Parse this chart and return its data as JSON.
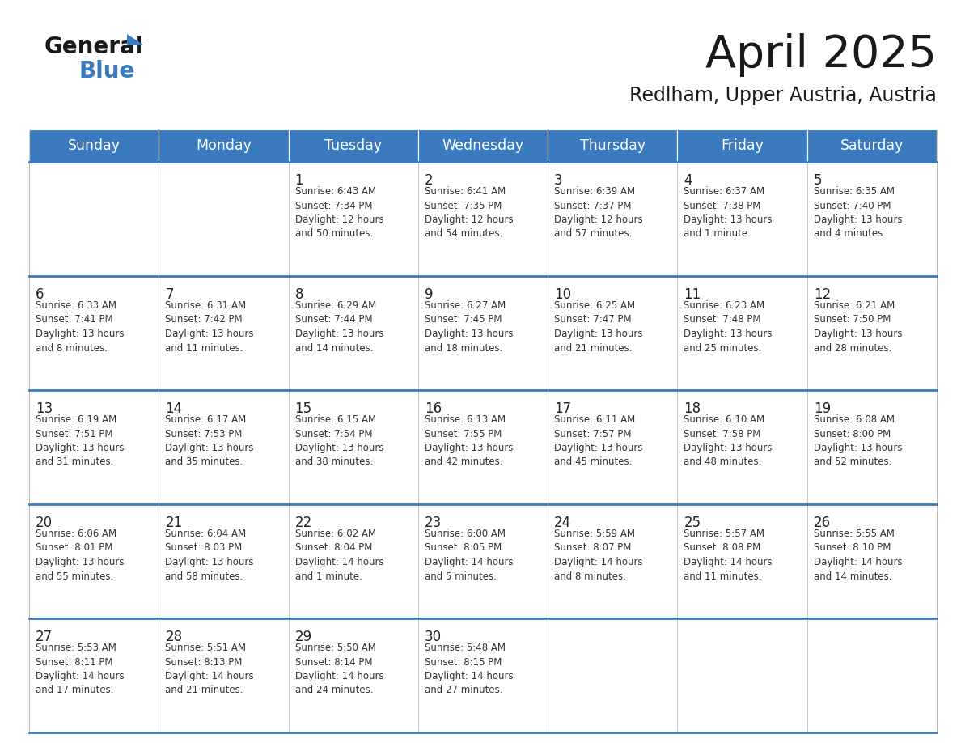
{
  "title": "April 2025",
  "subtitle": "Redlham, Upper Austria, Austria",
  "header_color": "#3a7bbf",
  "header_text_color": "#ffffff",
  "border_color": "#3a7bbf",
  "cell_border_color": "#aaaaaa",
  "cell_bg": "#ffffff",
  "text_color": "#333333",
  "day_headers": [
    "Sunday",
    "Monday",
    "Tuesday",
    "Wednesday",
    "Thursday",
    "Friday",
    "Saturday"
  ],
  "weeks": [
    [
      {
        "day": "",
        "info": ""
      },
      {
        "day": "",
        "info": ""
      },
      {
        "day": "1",
        "info": "Sunrise: 6:43 AM\nSunset: 7:34 PM\nDaylight: 12 hours\nand 50 minutes."
      },
      {
        "day": "2",
        "info": "Sunrise: 6:41 AM\nSunset: 7:35 PM\nDaylight: 12 hours\nand 54 minutes."
      },
      {
        "day": "3",
        "info": "Sunrise: 6:39 AM\nSunset: 7:37 PM\nDaylight: 12 hours\nand 57 minutes."
      },
      {
        "day": "4",
        "info": "Sunrise: 6:37 AM\nSunset: 7:38 PM\nDaylight: 13 hours\nand 1 minute."
      },
      {
        "day": "5",
        "info": "Sunrise: 6:35 AM\nSunset: 7:40 PM\nDaylight: 13 hours\nand 4 minutes."
      }
    ],
    [
      {
        "day": "6",
        "info": "Sunrise: 6:33 AM\nSunset: 7:41 PM\nDaylight: 13 hours\nand 8 minutes."
      },
      {
        "day": "7",
        "info": "Sunrise: 6:31 AM\nSunset: 7:42 PM\nDaylight: 13 hours\nand 11 minutes."
      },
      {
        "day": "8",
        "info": "Sunrise: 6:29 AM\nSunset: 7:44 PM\nDaylight: 13 hours\nand 14 minutes."
      },
      {
        "day": "9",
        "info": "Sunrise: 6:27 AM\nSunset: 7:45 PM\nDaylight: 13 hours\nand 18 minutes."
      },
      {
        "day": "10",
        "info": "Sunrise: 6:25 AM\nSunset: 7:47 PM\nDaylight: 13 hours\nand 21 minutes."
      },
      {
        "day": "11",
        "info": "Sunrise: 6:23 AM\nSunset: 7:48 PM\nDaylight: 13 hours\nand 25 minutes."
      },
      {
        "day": "12",
        "info": "Sunrise: 6:21 AM\nSunset: 7:50 PM\nDaylight: 13 hours\nand 28 minutes."
      }
    ],
    [
      {
        "day": "13",
        "info": "Sunrise: 6:19 AM\nSunset: 7:51 PM\nDaylight: 13 hours\nand 31 minutes."
      },
      {
        "day": "14",
        "info": "Sunrise: 6:17 AM\nSunset: 7:53 PM\nDaylight: 13 hours\nand 35 minutes."
      },
      {
        "day": "15",
        "info": "Sunrise: 6:15 AM\nSunset: 7:54 PM\nDaylight: 13 hours\nand 38 minutes."
      },
      {
        "day": "16",
        "info": "Sunrise: 6:13 AM\nSunset: 7:55 PM\nDaylight: 13 hours\nand 42 minutes."
      },
      {
        "day": "17",
        "info": "Sunrise: 6:11 AM\nSunset: 7:57 PM\nDaylight: 13 hours\nand 45 minutes."
      },
      {
        "day": "18",
        "info": "Sunrise: 6:10 AM\nSunset: 7:58 PM\nDaylight: 13 hours\nand 48 minutes."
      },
      {
        "day": "19",
        "info": "Sunrise: 6:08 AM\nSunset: 8:00 PM\nDaylight: 13 hours\nand 52 minutes."
      }
    ],
    [
      {
        "day": "20",
        "info": "Sunrise: 6:06 AM\nSunset: 8:01 PM\nDaylight: 13 hours\nand 55 minutes."
      },
      {
        "day": "21",
        "info": "Sunrise: 6:04 AM\nSunset: 8:03 PM\nDaylight: 13 hours\nand 58 minutes."
      },
      {
        "day": "22",
        "info": "Sunrise: 6:02 AM\nSunset: 8:04 PM\nDaylight: 14 hours\nand 1 minute."
      },
      {
        "day": "23",
        "info": "Sunrise: 6:00 AM\nSunset: 8:05 PM\nDaylight: 14 hours\nand 5 minutes."
      },
      {
        "day": "24",
        "info": "Sunrise: 5:59 AM\nSunset: 8:07 PM\nDaylight: 14 hours\nand 8 minutes."
      },
      {
        "day": "25",
        "info": "Sunrise: 5:57 AM\nSunset: 8:08 PM\nDaylight: 14 hours\nand 11 minutes."
      },
      {
        "day": "26",
        "info": "Sunrise: 5:55 AM\nSunset: 8:10 PM\nDaylight: 14 hours\nand 14 minutes."
      }
    ],
    [
      {
        "day": "27",
        "info": "Sunrise: 5:53 AM\nSunset: 8:11 PM\nDaylight: 14 hours\nand 17 minutes."
      },
      {
        "day": "28",
        "info": "Sunrise: 5:51 AM\nSunset: 8:13 PM\nDaylight: 14 hours\nand 21 minutes."
      },
      {
        "day": "29",
        "info": "Sunrise: 5:50 AM\nSunset: 8:14 PM\nDaylight: 14 hours\nand 24 minutes."
      },
      {
        "day": "30",
        "info": "Sunrise: 5:48 AM\nSunset: 8:15 PM\nDaylight: 14 hours\nand 27 minutes."
      },
      {
        "day": "",
        "info": ""
      },
      {
        "day": "",
        "info": ""
      },
      {
        "day": "",
        "info": ""
      }
    ]
  ],
  "fig_width": 11.88,
  "fig_height": 9.18,
  "dpi": 100
}
